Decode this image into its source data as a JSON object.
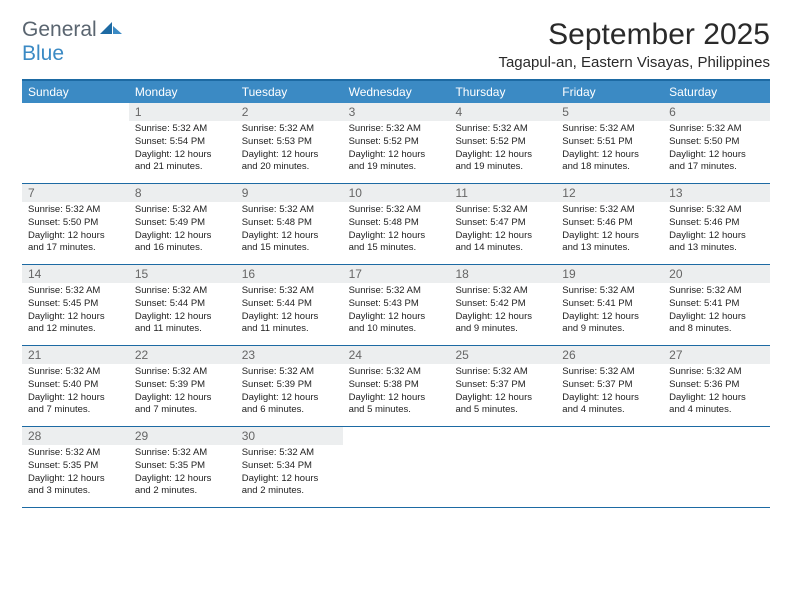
{
  "logo": {
    "word1": "General",
    "word2": "Blue"
  },
  "title": "September 2025",
  "location": "Tagapul-an, Eastern Visayas, Philippines",
  "colors": {
    "header_bg": "#3b8ac4",
    "header_border": "#1d6aa3",
    "daynum_bg": "#eceeef",
    "text": "#222222",
    "logo_gray": "#5a6570",
    "logo_blue": "#3b8ac4"
  },
  "day_names": [
    "Sunday",
    "Monday",
    "Tuesday",
    "Wednesday",
    "Thursday",
    "Friday",
    "Saturday"
  ],
  "weeks": [
    [
      null,
      {
        "n": "1",
        "sunrise": "Sunrise: 5:32 AM",
        "sunset": "Sunset: 5:54 PM",
        "daylight": "Daylight: 12 hours and 21 minutes."
      },
      {
        "n": "2",
        "sunrise": "Sunrise: 5:32 AM",
        "sunset": "Sunset: 5:53 PM",
        "daylight": "Daylight: 12 hours and 20 minutes."
      },
      {
        "n": "3",
        "sunrise": "Sunrise: 5:32 AM",
        "sunset": "Sunset: 5:52 PM",
        "daylight": "Daylight: 12 hours and 19 minutes."
      },
      {
        "n": "4",
        "sunrise": "Sunrise: 5:32 AM",
        "sunset": "Sunset: 5:52 PM",
        "daylight": "Daylight: 12 hours and 19 minutes."
      },
      {
        "n": "5",
        "sunrise": "Sunrise: 5:32 AM",
        "sunset": "Sunset: 5:51 PM",
        "daylight": "Daylight: 12 hours and 18 minutes."
      },
      {
        "n": "6",
        "sunrise": "Sunrise: 5:32 AM",
        "sunset": "Sunset: 5:50 PM",
        "daylight": "Daylight: 12 hours and 17 minutes."
      }
    ],
    [
      {
        "n": "7",
        "sunrise": "Sunrise: 5:32 AM",
        "sunset": "Sunset: 5:50 PM",
        "daylight": "Daylight: 12 hours and 17 minutes."
      },
      {
        "n": "8",
        "sunrise": "Sunrise: 5:32 AM",
        "sunset": "Sunset: 5:49 PM",
        "daylight": "Daylight: 12 hours and 16 minutes."
      },
      {
        "n": "9",
        "sunrise": "Sunrise: 5:32 AM",
        "sunset": "Sunset: 5:48 PM",
        "daylight": "Daylight: 12 hours and 15 minutes."
      },
      {
        "n": "10",
        "sunrise": "Sunrise: 5:32 AM",
        "sunset": "Sunset: 5:48 PM",
        "daylight": "Daylight: 12 hours and 15 minutes."
      },
      {
        "n": "11",
        "sunrise": "Sunrise: 5:32 AM",
        "sunset": "Sunset: 5:47 PM",
        "daylight": "Daylight: 12 hours and 14 minutes."
      },
      {
        "n": "12",
        "sunrise": "Sunrise: 5:32 AM",
        "sunset": "Sunset: 5:46 PM",
        "daylight": "Daylight: 12 hours and 13 minutes."
      },
      {
        "n": "13",
        "sunrise": "Sunrise: 5:32 AM",
        "sunset": "Sunset: 5:46 PM",
        "daylight": "Daylight: 12 hours and 13 minutes."
      }
    ],
    [
      {
        "n": "14",
        "sunrise": "Sunrise: 5:32 AM",
        "sunset": "Sunset: 5:45 PM",
        "daylight": "Daylight: 12 hours and 12 minutes."
      },
      {
        "n": "15",
        "sunrise": "Sunrise: 5:32 AM",
        "sunset": "Sunset: 5:44 PM",
        "daylight": "Daylight: 12 hours and 11 minutes."
      },
      {
        "n": "16",
        "sunrise": "Sunrise: 5:32 AM",
        "sunset": "Sunset: 5:44 PM",
        "daylight": "Daylight: 12 hours and 11 minutes."
      },
      {
        "n": "17",
        "sunrise": "Sunrise: 5:32 AM",
        "sunset": "Sunset: 5:43 PM",
        "daylight": "Daylight: 12 hours and 10 minutes."
      },
      {
        "n": "18",
        "sunrise": "Sunrise: 5:32 AM",
        "sunset": "Sunset: 5:42 PM",
        "daylight": "Daylight: 12 hours and 9 minutes."
      },
      {
        "n": "19",
        "sunrise": "Sunrise: 5:32 AM",
        "sunset": "Sunset: 5:41 PM",
        "daylight": "Daylight: 12 hours and 9 minutes."
      },
      {
        "n": "20",
        "sunrise": "Sunrise: 5:32 AM",
        "sunset": "Sunset: 5:41 PM",
        "daylight": "Daylight: 12 hours and 8 minutes."
      }
    ],
    [
      {
        "n": "21",
        "sunrise": "Sunrise: 5:32 AM",
        "sunset": "Sunset: 5:40 PM",
        "daylight": "Daylight: 12 hours and 7 minutes."
      },
      {
        "n": "22",
        "sunrise": "Sunrise: 5:32 AM",
        "sunset": "Sunset: 5:39 PM",
        "daylight": "Daylight: 12 hours and 7 minutes."
      },
      {
        "n": "23",
        "sunrise": "Sunrise: 5:32 AM",
        "sunset": "Sunset: 5:39 PM",
        "daylight": "Daylight: 12 hours and 6 minutes."
      },
      {
        "n": "24",
        "sunrise": "Sunrise: 5:32 AM",
        "sunset": "Sunset: 5:38 PM",
        "daylight": "Daylight: 12 hours and 5 minutes."
      },
      {
        "n": "25",
        "sunrise": "Sunrise: 5:32 AM",
        "sunset": "Sunset: 5:37 PM",
        "daylight": "Daylight: 12 hours and 5 minutes."
      },
      {
        "n": "26",
        "sunrise": "Sunrise: 5:32 AM",
        "sunset": "Sunset: 5:37 PM",
        "daylight": "Daylight: 12 hours and 4 minutes."
      },
      {
        "n": "27",
        "sunrise": "Sunrise: 5:32 AM",
        "sunset": "Sunset: 5:36 PM",
        "daylight": "Daylight: 12 hours and 4 minutes."
      }
    ],
    [
      {
        "n": "28",
        "sunrise": "Sunrise: 5:32 AM",
        "sunset": "Sunset: 5:35 PM",
        "daylight": "Daylight: 12 hours and 3 minutes."
      },
      {
        "n": "29",
        "sunrise": "Sunrise: 5:32 AM",
        "sunset": "Sunset: 5:35 PM",
        "daylight": "Daylight: 12 hours and 2 minutes."
      },
      {
        "n": "30",
        "sunrise": "Sunrise: 5:32 AM",
        "sunset": "Sunset: 5:34 PM",
        "daylight": "Daylight: 12 hours and 2 minutes."
      },
      null,
      null,
      null,
      null
    ]
  ]
}
